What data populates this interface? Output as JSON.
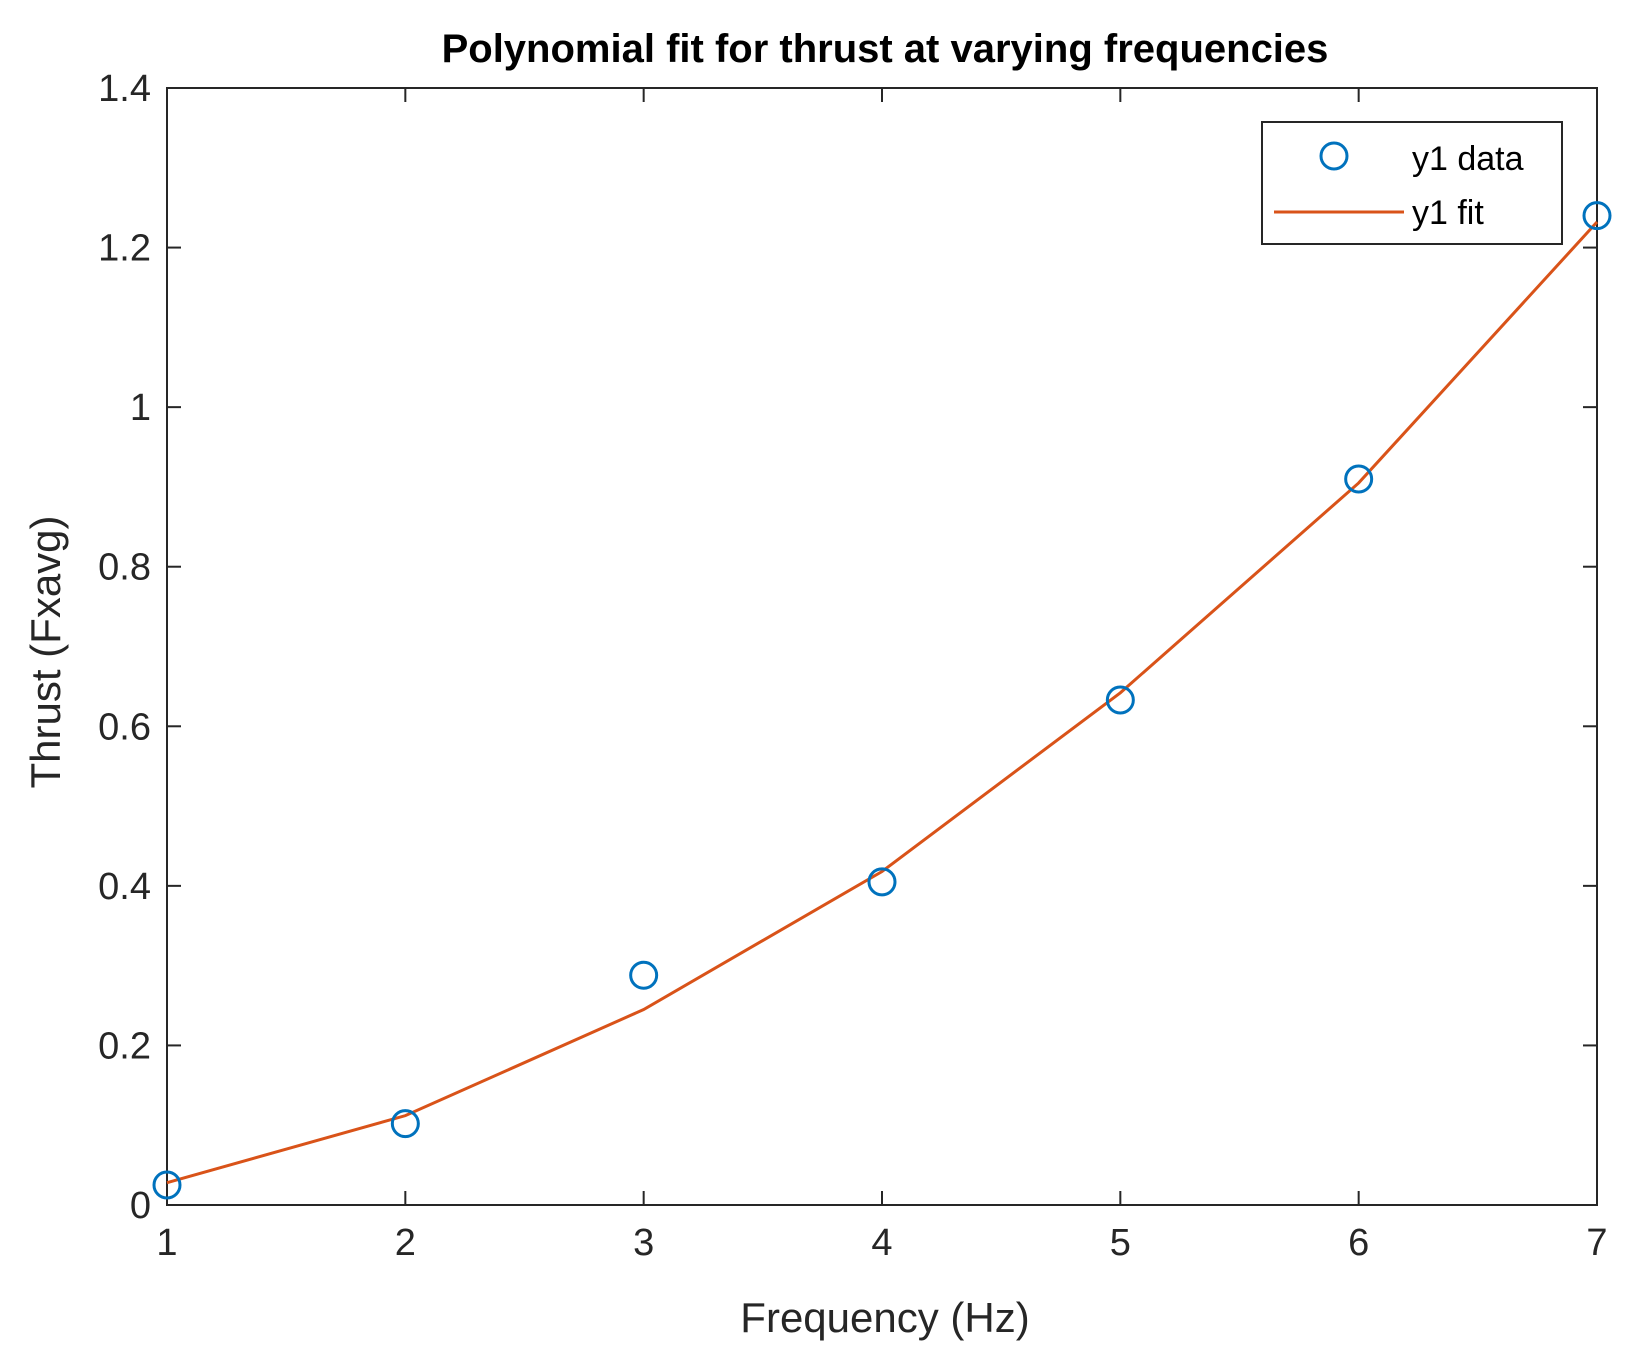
{
  "chart_data": {
    "type": "line",
    "title": "Polynomial fit for thrust at varying frequencies",
    "xlabel": "Frequency (Hz)",
    "ylabel": "Thrust (Fxavg)",
    "xlim": [
      1,
      7
    ],
    "ylim": [
      0,
      1.4
    ],
    "xticks": [
      1,
      2,
      3,
      4,
      5,
      6,
      7
    ],
    "xtick_labels": [
      "1",
      "2",
      "3",
      "4",
      "5",
      "6",
      "7"
    ],
    "yticks": [
      0,
      0.2,
      0.4,
      0.6,
      0.8,
      1.0,
      1.2,
      1.4
    ],
    "ytick_labels": [
      "0",
      "0.2",
      "0.4",
      "0.6",
      "0.8",
      "1",
      "1.2",
      "1.4"
    ],
    "grid": false,
    "legend_position": "top-right",
    "series": [
      {
        "name": "y1 data",
        "style": "markers",
        "marker": "circle",
        "color": "#0072BD",
        "x": [
          1,
          2,
          3,
          4,
          5,
          6,
          7
        ],
        "y": [
          0.025,
          0.102,
          0.288,
          0.405,
          0.633,
          0.91,
          1.24
        ]
      },
      {
        "name": "y1 fit",
        "style": "line",
        "color": "#D95319",
        "x": [
          1,
          2,
          3,
          4,
          5,
          6,
          7
        ],
        "y": [
          0.028,
          0.112,
          0.245,
          0.418,
          0.642,
          0.905,
          1.232
        ]
      }
    ]
  }
}
